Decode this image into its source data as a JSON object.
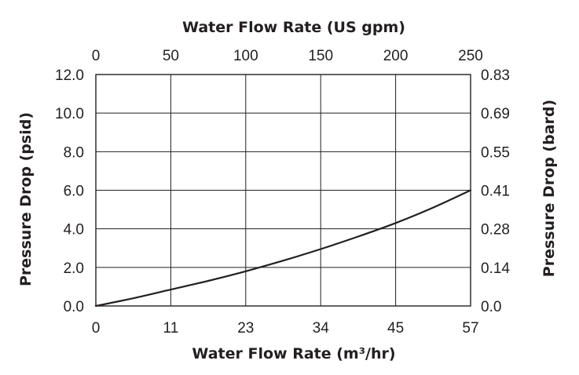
{
  "chart_data": {
    "type": "line",
    "title": "",
    "xlabel_top": "Water Flow Rate (US gpm)",
    "xlabel_bottom": "Water Flow Rate (m³/hr)",
    "ylabel_left": "Pressure Drop (psid)",
    "ylabel_right": "Pressure Drop (bard)",
    "xlim": [
      0,
      250
    ],
    "ylim": [
      0,
      12
    ],
    "grid": true,
    "x_top_ticks": [
      "0",
      "50",
      "100",
      "150",
      "200",
      "250"
    ],
    "x_bottom_ticks": [
      "0",
      "11",
      "23",
      "34",
      "45",
      "57"
    ],
    "y_left_ticks": [
      "0.0",
      "2.0",
      "4.0",
      "6.0",
      "8.0",
      "10.0",
      "12.0"
    ],
    "y_right_ticks": [
      "0.0",
      "0.14",
      "0.28",
      "0.41",
      "0.55",
      "0.69",
      "0.83"
    ],
    "series": [
      {
        "x": [
          0,
          25,
          50,
          75,
          100,
          125,
          150,
          175,
          200,
          225,
          250
        ],
        "y": [
          0,
          0.4,
          0.85,
          1.3,
          1.8,
          2.35,
          2.95,
          3.6,
          4.3,
          5.1,
          6.0
        ]
      }
    ]
  }
}
